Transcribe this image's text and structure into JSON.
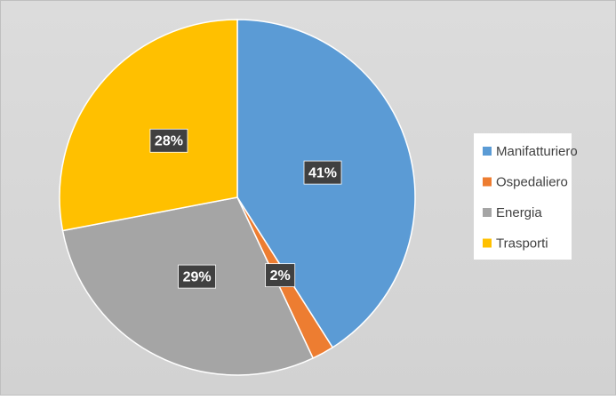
{
  "chart_data": {
    "type": "pie",
    "categories": [
      "Manifatturiero",
      "Ospedaliero",
      "Energia",
      "Trasporti"
    ],
    "values": [
      41,
      2,
      29,
      28
    ],
    "value_labels": [
      "41%",
      "2%",
      "29%",
      "28%"
    ],
    "colors": [
      "#5b9bd5",
      "#ed7d31",
      "#a5a5a5",
      "#ffc000"
    ],
    "legend": "right"
  }
}
